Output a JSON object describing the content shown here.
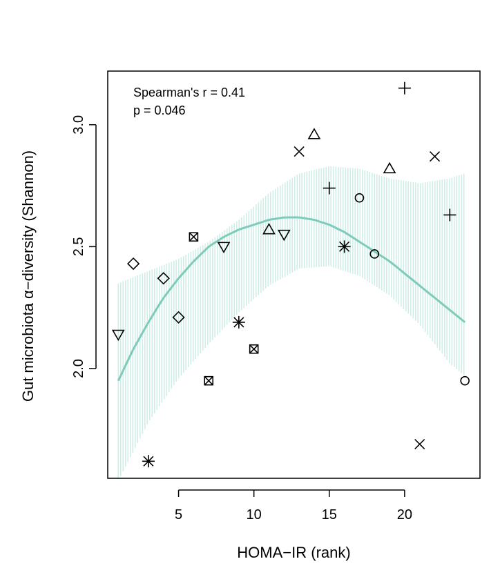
{
  "chart_data": {
    "type": "scatter",
    "title": "",
    "xlabel": "HOMA−IR (rank)",
    "ylabel": "Gut microbiota α−diversity (Shannon)",
    "xlim": [
      0.3,
      25.0
    ],
    "ylim": [
      1.55,
      3.22
    ],
    "x_ticks": [
      5,
      10,
      15,
      20
    ],
    "x_tick_labels": [
      "5",
      "10",
      "15",
      "20"
    ],
    "y_ticks": [
      2.0,
      2.5,
      3.0
    ],
    "y_tick_labels": [
      "2.0",
      "2.5",
      "3.0"
    ],
    "grid": false,
    "annotations": [
      "Spearman's r = 0.41",
      "p = 0.046"
    ],
    "smooth": {
      "x_from": 1,
      "x_to": 24,
      "fit": [
        1.95,
        2.08,
        2.19,
        2.29,
        2.37,
        2.44,
        2.5,
        2.54,
        2.57,
        2.59,
        2.61,
        2.62,
        2.62,
        2.61,
        2.59,
        2.56,
        2.52,
        2.48,
        2.44,
        2.39
      ],
      "fit_x": [
        1,
        2,
        3,
        4,
        5,
        6,
        7,
        8,
        9,
        10,
        11,
        12,
        13,
        14,
        15,
        16,
        17,
        18,
        19,
        20
      ],
      "band_x": [
        1,
        3,
        5,
        7,
        9,
        11,
        13,
        15,
        17,
        19,
        21,
        23,
        24
      ],
      "band_upper": [
        2.35,
        2.4,
        2.45,
        2.52,
        2.61,
        2.72,
        2.8,
        2.83,
        2.82,
        2.78,
        2.76,
        2.78,
        2.8
      ],
      "band_lower": [
        1.54,
        1.78,
        1.96,
        2.1,
        2.23,
        2.34,
        2.41,
        2.42,
        2.38,
        2.3,
        2.18,
        2.02,
        1.97
      ],
      "color": "#7ecbbc",
      "band_color": "#cfeee7"
    },
    "points": [
      {
        "x": 1,
        "y": 2.14,
        "shape": "triangle-down"
      },
      {
        "x": 2,
        "y": 2.43,
        "shape": "diamond"
      },
      {
        "x": 3,
        "y": 1.62,
        "shape": "asterisk"
      },
      {
        "x": 4,
        "y": 2.37,
        "shape": "diamond"
      },
      {
        "x": 5,
        "y": 2.21,
        "shape": "diamond"
      },
      {
        "x": 6,
        "y": 2.54,
        "shape": "square-x"
      },
      {
        "x": 7,
        "y": 1.95,
        "shape": "square-x"
      },
      {
        "x": 8,
        "y": 2.5,
        "shape": "triangle-down"
      },
      {
        "x": 9,
        "y": 2.19,
        "shape": "asterisk"
      },
      {
        "x": 10,
        "y": 2.08,
        "shape": "square-x"
      },
      {
        "x": 11,
        "y": 2.57,
        "shape": "triangle-up"
      },
      {
        "x": 12,
        "y": 2.55,
        "shape": "triangle-down"
      },
      {
        "x": 13,
        "y": 2.89,
        "shape": "cross-x"
      },
      {
        "x": 14,
        "y": 2.96,
        "shape": "triangle-up"
      },
      {
        "x": 15,
        "y": 2.74,
        "shape": "plus"
      },
      {
        "x": 16,
        "y": 2.5,
        "shape": "asterisk"
      },
      {
        "x": 17,
        "y": 2.7,
        "shape": "circle"
      },
      {
        "x": 18,
        "y": 2.47,
        "shape": "circle"
      },
      {
        "x": 19,
        "y": 2.82,
        "shape": "triangle-up"
      },
      {
        "x": 20,
        "y": 3.15,
        "shape": "plus"
      },
      {
        "x": 21,
        "y": 1.69,
        "shape": "cross-x"
      },
      {
        "x": 22,
        "y": 2.87,
        "shape": "cross-x"
      },
      {
        "x": 23,
        "y": 2.63,
        "shape": "plus"
      },
      {
        "x": 24,
        "y": 1.95,
        "shape": "circle"
      }
    ]
  }
}
